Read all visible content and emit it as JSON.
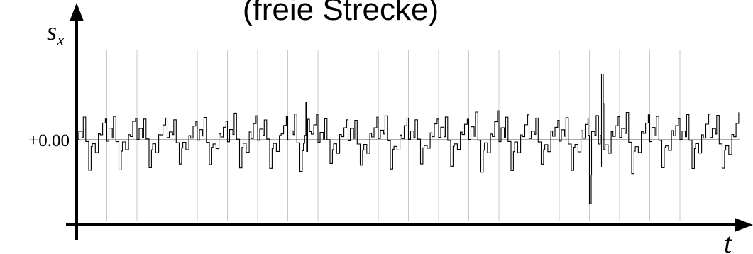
{
  "chart_data": {
    "type": "line",
    "title": "(freie Strecke)",
    "ylabel": "s",
    "ylabel_subscript": "x",
    "xlabel": "t",
    "y_ticks": [
      {
        "value": 0,
        "label": "+0.00"
      }
    ],
    "ylim": [
      -1.0,
      1.0
    ],
    "x_range": [
      0,
      22
    ],
    "grid": "vertical-only",
    "n_periods": 22,
    "period_pattern": {
      "positions": [
        0,
        0.07,
        0.18,
        0.22,
        0.3,
        0.4,
        0.48,
        0.52,
        0.62,
        0.72,
        0.78,
        0.86,
        0.95
      ],
      "values": [
        0.0,
        0.12,
        0.04,
        0.26,
        -0.02,
        -0.32,
        -0.1,
        -0.05,
        -0.14,
        0.08,
        0.04,
        0.18,
        0.26
      ]
    },
    "annotations": [
      {
        "x": 7.6,
        "y": 0.42,
        "description": "local peak"
      },
      {
        "x": 17.4,
        "y": 0.74,
        "description": "large positive spike"
      },
      {
        "x": 17.0,
        "y": -0.72,
        "description": "large negative spike"
      }
    ],
    "colors": {
      "line": "#000000",
      "grid": "#c8c8c8",
      "zero_line": "#555555",
      "axes": "#000000"
    }
  }
}
